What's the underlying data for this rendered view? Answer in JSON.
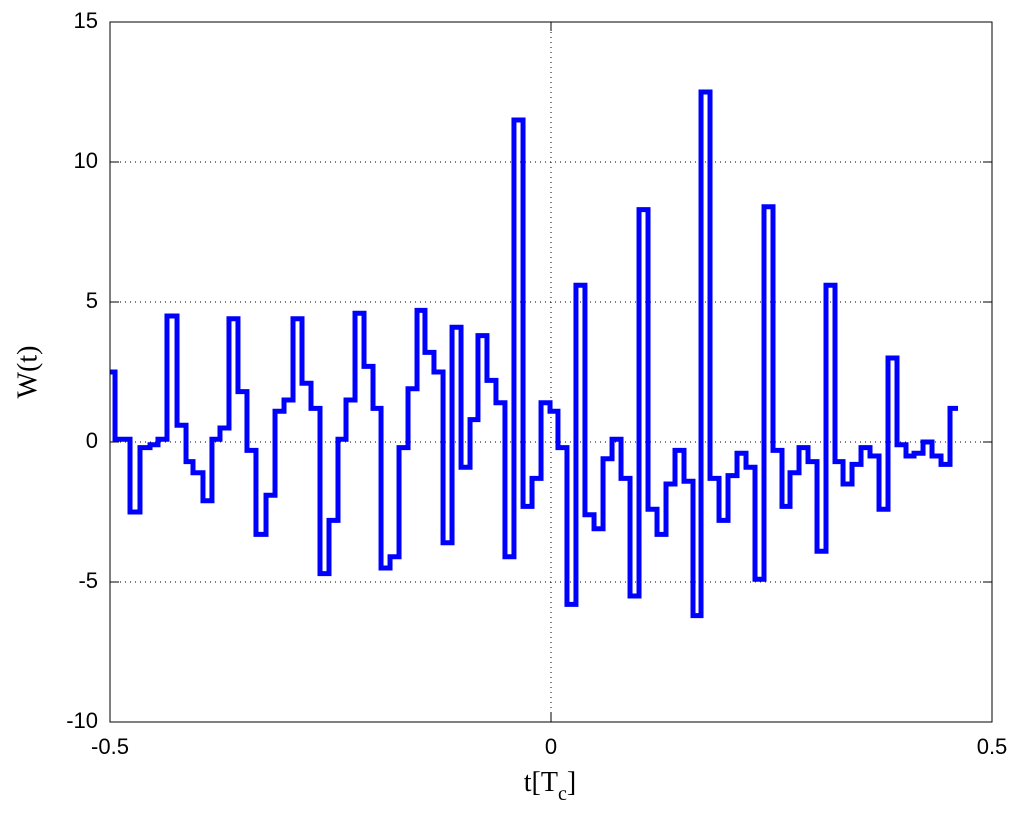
{
  "chart_data": {
    "type": "line",
    "step": "post",
    "xlabel": [
      "t[T",
      "c",
      "]"
    ],
    "ylabel": "W(t)",
    "xlim": [
      -0.5,
      0.5
    ],
    "xticks": [
      -0.5,
      0,
      0.5
    ],
    "ylim": [
      -10,
      15
    ],
    "yticks": [
      -10,
      -5,
      0,
      5,
      10,
      15
    ],
    "grid": true,
    "x": [
      -0.5,
      -0.4943,
      -0.4773,
      -0.466,
      -0.4546,
      -0.4456,
      -0.4354,
      -0.424,
      -0.4138,
      -0.4059,
      -0.3946,
      -0.3844,
      -0.3753,
      -0.3651,
      -0.3549,
      -0.3447,
      -0.3345,
      -0.3231,
      -0.3129,
      -0.3027,
      -0.2925,
      -0.2823,
      -0.2721,
      -0.2619,
      -0.2517,
      -0.2415,
      -0.2324,
      -0.2222,
      -0.212,
      -0.2018,
      -0.1927,
      -0.1825,
      -0.1723,
      -0.1621,
      -0.1519,
      -0.1429,
      -0.1327,
      -0.1224,
      -0.1122,
      -0.102,
      -0.0918,
      -0.0828,
      -0.0726,
      -0.0624,
      -0.0522,
      -0.042,
      -0.0317,
      -0.0215,
      -0.0113,
      -0.0011,
      0.0079,
      0.0181,
      0.0283,
      0.0385,
      0.0488,
      0.059,
      0.0692,
      0.0794,
      0.0896,
      0.0998,
      0.11,
      0.1202,
      0.1304,
      0.1406,
      0.1508,
      0.161,
      0.1701,
      0.1803,
      0.1905,
      0.2007,
      0.2109,
      0.2211,
      0.2313,
      0.2415,
      0.2517,
      0.2619,
      0.271,
      0.2812,
      0.2914,
      0.3016,
      0.3118,
      0.322,
      0.3311,
      0.3413,
      0.3515,
      0.3617,
      0.3719,
      0.3821,
      0.3923,
      0.4025,
      0.4116,
      0.4218,
      0.432,
      0.4422,
      0.4524,
      0.4615
    ],
    "series": [
      {
        "color": "#0000ff",
        "values": [
          2.5,
          0.1,
          -2.5,
          -0.2,
          -0.1,
          0.1,
          4.5,
          0.6,
          -0.7,
          -1.1,
          -2.1,
          0.1,
          0.5,
          4.4,
          1.8,
          -0.3,
          -3.3,
          -1.9,
          1.1,
          1.5,
          4.4,
          2.1,
          1.2,
          -4.7,
          -2.8,
          0.1,
          1.5,
          4.6,
          2.7,
          1.2,
          -4.5,
          -4.1,
          -0.2,
          1.9,
          4.7,
          3.2,
          2.5,
          -3.6,
          4.1,
          -0.9,
          0.8,
          3.8,
          2.2,
          1.4,
          -4.1,
          11.5,
          -2.3,
          -1.3,
          1.4,
          1.1,
          -0.2,
          -5.8,
          5.6,
          -2.6,
          -3.1,
          -0.6,
          0.1,
          -1.3,
          -5.5,
          8.3,
          -2.4,
          -3.3,
          -1.5,
          -0.3,
          -1.4,
          -6.2,
          12.5,
          -1.3,
          -2.8,
          -1.2,
          -0.4,
          -0.9,
          -4.9,
          8.4,
          -0.3,
          -2.3,
          -1.1,
          -0.2,
          -0.7,
          -3.9,
          5.6,
          -0.7,
          -1.5,
          -0.8,
          -0.2,
          -0.5,
          -2.4,
          3.0,
          -0.1,
          -0.5,
          -0.4,
          0.0,
          -0.5,
          -0.8,
          1.2,
          1.2
        ]
      }
    ]
  }
}
